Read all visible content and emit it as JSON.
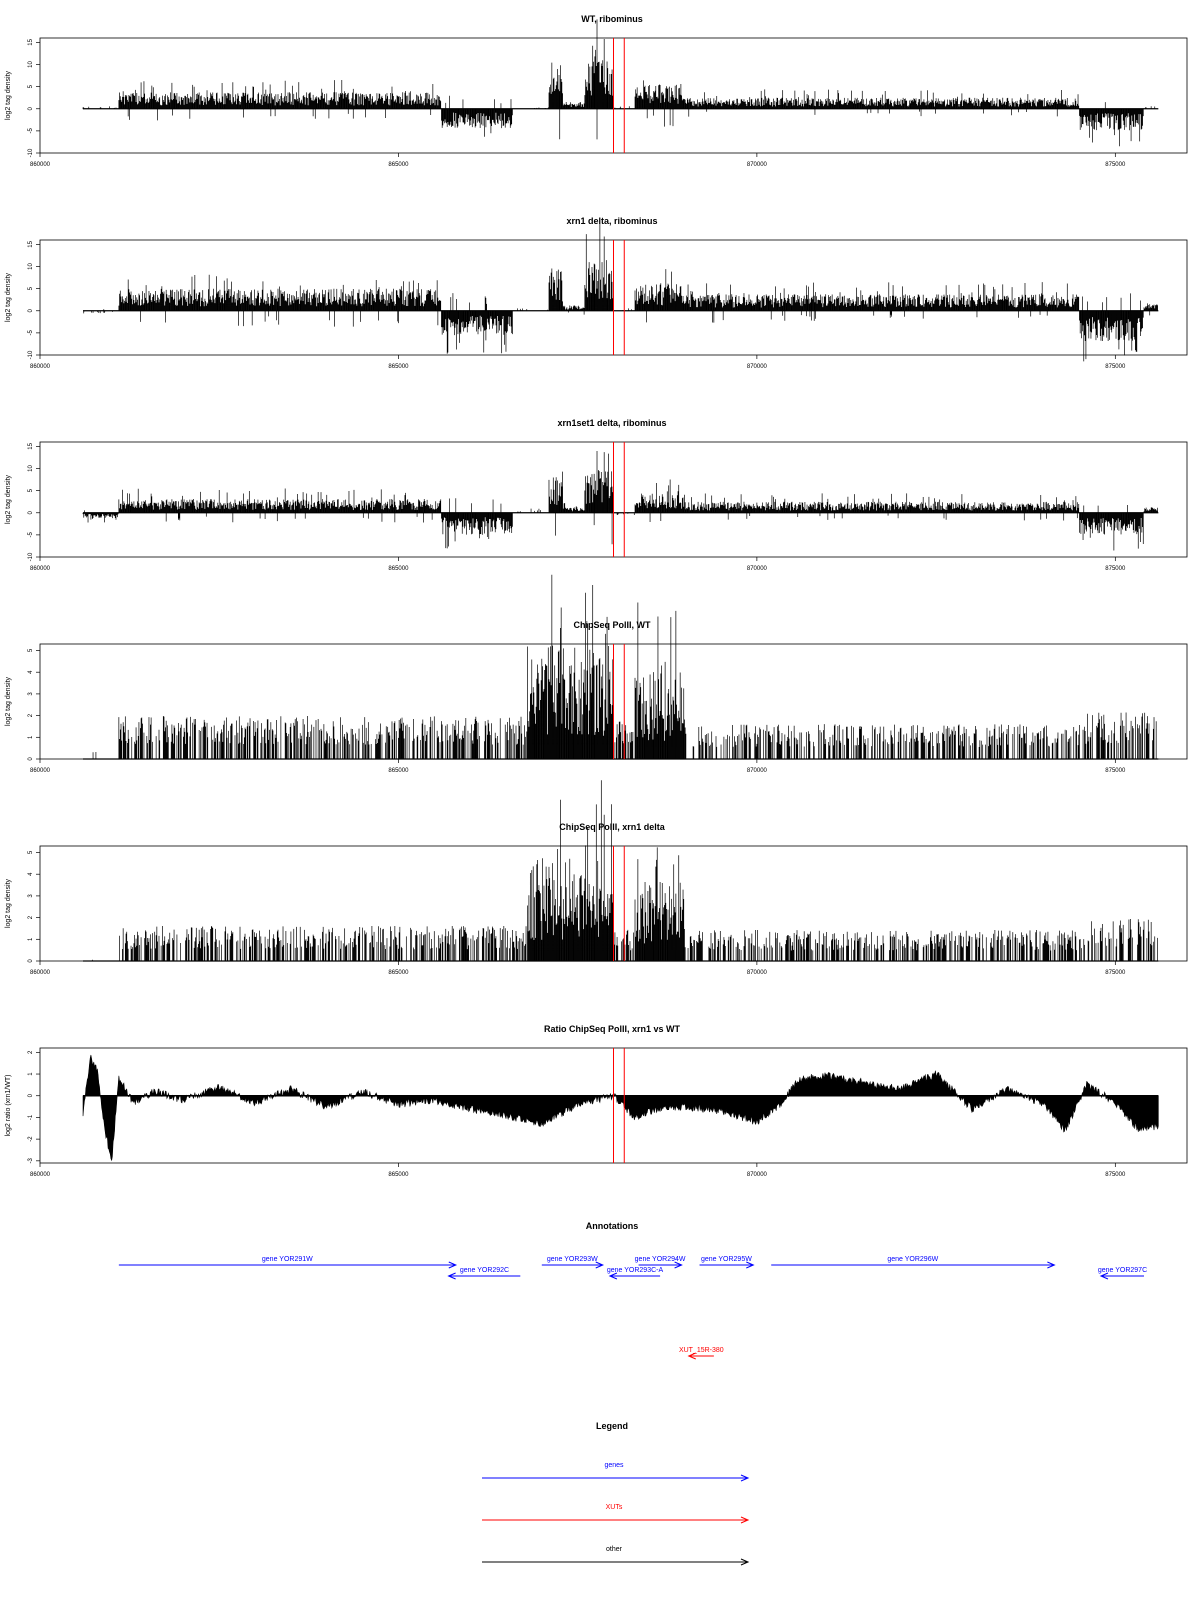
{
  "chart_data": [
    {
      "type": "bar",
      "title": "WT, ribominus",
      "ylabel": "log2 tag density",
      "xlim": [
        860000,
        876000
      ],
      "ylim": [
        -10,
        16
      ],
      "yticks": [
        -10,
        -5,
        0,
        5,
        10,
        15
      ],
      "xticks": [
        860000,
        865000,
        870000,
        875000
      ],
      "xtick_labels": [
        "860000",
        "865000",
        "870000",
        "875000"
      ],
      "markers": [
        868000,
        868150
      ],
      "data_range": [
        860600,
        875600
      ],
      "segments": [
        {
          "x0": 860600,
          "x1": 861100,
          "level": 0.3,
          "sign": 1
        },
        {
          "x0": 861100,
          "x1": 865600,
          "level": 3.0,
          "sign": 1
        },
        {
          "x0": 865600,
          "x1": 866600,
          "level": 3.5,
          "sign": -1
        },
        {
          "x0": 866600,
          "x1": 867100,
          "level": 0.3,
          "sign": 1
        },
        {
          "x0": 867100,
          "x1": 867300,
          "level": 8.0,
          "sign": 1
        },
        {
          "x0": 867300,
          "x1": 867600,
          "level": 1.0,
          "sign": 1
        },
        {
          "x0": 867600,
          "x1": 868000,
          "level": 9.5,
          "sign": 1
        },
        {
          "x0": 868000,
          "x1": 868300,
          "level": 0.5,
          "sign": 1
        },
        {
          "x0": 868300,
          "x1": 869000,
          "level": 4.5,
          "sign": 1
        },
        {
          "x0": 869000,
          "x1": 874500,
          "level": 2.0,
          "sign": 1
        },
        {
          "x0": 874500,
          "x1": 875400,
          "level": 4.0,
          "sign": -1
        },
        {
          "x0": 875400,
          "x1": 875600,
          "level": 0.5,
          "sign": 1
        }
      ]
    },
    {
      "type": "bar",
      "title": "xrn1 delta, ribominus",
      "ylabel": "log2 tag density",
      "xlim": [
        860000,
        876000
      ],
      "ylim": [
        -10,
        16
      ],
      "yticks": [
        -10,
        -5,
        0,
        5,
        10,
        15
      ],
      "xticks": [
        860000,
        865000,
        870000,
        875000
      ],
      "xtick_labels": [
        "860000",
        "865000",
        "870000",
        "875000"
      ],
      "markers": [
        868000,
        868150
      ],
      "data_range": [
        860600,
        875600
      ],
      "segments": [
        {
          "x0": 860600,
          "x1": 861100,
          "level": 0.5,
          "sign": -1
        },
        {
          "x0": 861100,
          "x1": 865600,
          "level": 4.0,
          "sign": 1
        },
        {
          "x0": 865600,
          "x1": 866600,
          "level": 4.5,
          "sign": -1
        },
        {
          "x0": 866600,
          "x1": 867100,
          "level": 0.5,
          "sign": 1
        },
        {
          "x0": 867100,
          "x1": 867300,
          "level": 8.0,
          "sign": 1
        },
        {
          "x0": 867300,
          "x1": 867600,
          "level": 1.0,
          "sign": 1
        },
        {
          "x0": 867600,
          "x1": 868000,
          "level": 9.5,
          "sign": 1
        },
        {
          "x0": 868000,
          "x1": 868300,
          "level": 0.5,
          "sign": 1
        },
        {
          "x0": 868300,
          "x1": 869000,
          "level": 5.0,
          "sign": 1
        },
        {
          "x0": 869000,
          "x1": 874500,
          "level": 3.0,
          "sign": 1
        },
        {
          "x0": 874500,
          "x1": 875400,
          "level": 5.5,
          "sign": -1
        },
        {
          "x0": 875400,
          "x1": 875600,
          "level": 1.5,
          "sign": 1
        }
      ]
    },
    {
      "type": "bar",
      "title": "xrn1set1 delta, ribominus",
      "ylabel": "log2 tag density",
      "xlim": [
        860000,
        876000
      ],
      "ylim": [
        -10,
        16
      ],
      "yticks": [
        -10,
        -5,
        0,
        5,
        10,
        15
      ],
      "xticks": [
        860000,
        865000,
        870000,
        875000
      ],
      "xtick_labels": [
        "860000",
        "865000",
        "870000",
        "875000"
      ],
      "markers": [
        868000,
        868150
      ],
      "data_range": [
        860600,
        875600
      ],
      "segments": [
        {
          "x0": 860600,
          "x1": 861100,
          "level": 1.0,
          "sign": -1
        },
        {
          "x0": 861100,
          "x1": 865600,
          "level": 2.5,
          "sign": 1
        },
        {
          "x0": 865600,
          "x1": 866600,
          "level": 4.0,
          "sign": -1
        },
        {
          "x0": 866600,
          "x1": 867100,
          "level": 0.5,
          "sign": 1
        },
        {
          "x0": 867100,
          "x1": 867300,
          "level": 6.5,
          "sign": 1
        },
        {
          "x0": 867300,
          "x1": 867600,
          "level": 1.0,
          "sign": 1
        },
        {
          "x0": 867600,
          "x1": 868000,
          "level": 8.0,
          "sign": 1
        },
        {
          "x0": 868000,
          "x1": 868300,
          "level": 0.5,
          "sign": -1
        },
        {
          "x0": 868300,
          "x1": 869000,
          "level": 3.5,
          "sign": 1
        },
        {
          "x0": 869000,
          "x1": 874500,
          "level": 2.0,
          "sign": 1
        },
        {
          "x0": 874500,
          "x1": 875400,
          "level": 4.0,
          "sign": -1
        },
        {
          "x0": 875400,
          "x1": 875600,
          "level": 1.0,
          "sign": 1
        }
      ]
    },
    {
      "type": "bar",
      "title": "ChipSeq PolII, WT",
      "ylabel": "log2 tag density",
      "xlim": [
        860000,
        876000
      ],
      "ylim": [
        0,
        5.3
      ],
      "yticks": [
        0,
        1,
        2,
        3,
        4,
        5
      ],
      "xticks": [
        860000,
        865000,
        870000,
        875000
      ],
      "xtick_labels": [
        "860000",
        "865000",
        "870000",
        "875000"
      ],
      "markers": [
        868000,
        868150
      ],
      "data_range": [
        860600,
        875600
      ],
      "segments": [
        {
          "x0": 860600,
          "x1": 861100,
          "level": 0.2,
          "sign": 1
        },
        {
          "x0": 861100,
          "x1": 866800,
          "level": 1.1,
          "sign": 1
        },
        {
          "x0": 866800,
          "x1": 868000,
          "level": 4.2,
          "sign": 1
        },
        {
          "x0": 868000,
          "x1": 868300,
          "level": 1.0,
          "sign": 1
        },
        {
          "x0": 868300,
          "x1": 869000,
          "level": 3.3,
          "sign": 1
        },
        {
          "x0": 869000,
          "x1": 874600,
          "level": 0.9,
          "sign": 1
        },
        {
          "x0": 874600,
          "x1": 875600,
          "level": 1.2,
          "sign": 1
        }
      ]
    },
    {
      "type": "bar",
      "title": "ChipSeq PolII, xrn1 delta",
      "ylabel": "log2 tag density",
      "xlim": [
        860000,
        876000
      ],
      "ylim": [
        0,
        5.3
      ],
      "yticks": [
        0,
        1,
        2,
        3,
        4,
        5
      ],
      "xticks": [
        860000,
        865000,
        870000,
        875000
      ],
      "xtick_labels": [
        "860000",
        "865000",
        "870000",
        "875000"
      ],
      "markers": [
        868000,
        868150
      ],
      "data_range": [
        860600,
        875600
      ],
      "segments": [
        {
          "x0": 860600,
          "x1": 861100,
          "level": 0.1,
          "sign": 1
        },
        {
          "x0": 861100,
          "x1": 866800,
          "level": 0.9,
          "sign": 1
        },
        {
          "x0": 866800,
          "x1": 868000,
          "level": 3.8,
          "sign": 1
        },
        {
          "x0": 868000,
          "x1": 868300,
          "level": 0.8,
          "sign": 1
        },
        {
          "x0": 868300,
          "x1": 869000,
          "level": 3.0,
          "sign": 1
        },
        {
          "x0": 869000,
          "x1": 874600,
          "level": 0.8,
          "sign": 1
        },
        {
          "x0": 874600,
          "x1": 875600,
          "level": 1.1,
          "sign": 1
        }
      ]
    },
    {
      "type": "area",
      "title": "Ratio ChipSeq PolII, xrn1 vs WT",
      "ylabel": "log2 ratio (xrn1/WT)",
      "xlim": [
        860000,
        876000
      ],
      "ylim": [
        -3.1,
        2.2
      ],
      "yticks": [
        -3,
        -2,
        -1,
        0,
        1,
        2
      ],
      "xticks": [
        860000,
        865000,
        870000,
        875000
      ],
      "xtick_labels": [
        "860000",
        "865000",
        "870000",
        "875000"
      ],
      "markers": [
        868000,
        868150
      ],
      "profile_x": [
        860600,
        860700,
        860800,
        860900,
        861000,
        861100,
        861300,
        861600,
        862000,
        862500,
        863000,
        863500,
        864000,
        864500,
        865000,
        865500,
        866000,
        866500,
        867000,
        867500,
        868000,
        868300,
        868600,
        869000,
        869500,
        870000,
        870300,
        870600,
        871000,
        871500,
        872000,
        872500,
        873000,
        873500,
        874000,
        874300,
        874600,
        875000,
        875300,
        875600
      ],
      "profile_y": [
        -0.9,
        1.8,
        1.2,
        -1.5,
        -3.0,
        0.8,
        -0.3,
        0.2,
        -0.2,
        0.4,
        -0.3,
        0.3,
        -0.5,
        0.2,
        -0.4,
        -0.2,
        -0.6,
        -0.9,
        -1.3,
        -0.4,
        0.0,
        -1.0,
        -0.6,
        -0.5,
        -0.7,
        -1.2,
        -0.5,
        0.8,
        0.9,
        0.6,
        0.3,
        1.0,
        -0.6,
        0.3,
        -0.4,
        -1.6,
        0.5,
        -0.3,
        -1.5,
        -1.4
      ]
    }
  ],
  "annotations": {
    "title": "Annotations",
    "xlim": [
      860000,
      876000
    ],
    "features": [
      {
        "label": "gene YOR291W",
        "start": 861100,
        "end": 865800,
        "strand": "+",
        "row": 0,
        "kind": "gene",
        "color": "#0000ff"
      },
      {
        "label": "gene YOR292C",
        "start": 865700,
        "end": 866700,
        "strand": "-",
        "row": 1,
        "kind": "gene",
        "color": "#0000ff"
      },
      {
        "label": "gene YOR293W",
        "start": 867000,
        "end": 867850,
        "strand": "+",
        "row": 0,
        "kind": "gene",
        "color": "#0000ff"
      },
      {
        "label": "gene YOR293C-A",
        "start": 867950,
        "end": 868650,
        "strand": "-",
        "row": 1,
        "kind": "gene",
        "color": "#0000ff"
      },
      {
        "label": "gene YOR294W",
        "start": 868350,
        "end": 868950,
        "strand": "+",
        "row": 0,
        "kind": "gene",
        "color": "#0000ff"
      },
      {
        "label": "gene YOR295W",
        "start": 869200,
        "end": 869950,
        "strand": "+",
        "row": 0,
        "kind": "gene",
        "color": "#0000ff"
      },
      {
        "label": "gene YOR296W",
        "start": 870200,
        "end": 874150,
        "strand": "+",
        "row": 0,
        "kind": "gene",
        "color": "#0000ff"
      },
      {
        "label": "gene YOR297C",
        "start": 874800,
        "end": 875400,
        "strand": "-",
        "row": 1,
        "kind": "gene",
        "color": "#0000ff"
      },
      {
        "label": "XUT_15R-380",
        "start": 869050,
        "end": 869400,
        "strand": "-",
        "row": 2,
        "kind": "xut",
        "color": "#ff0000"
      }
    ]
  },
  "legend": {
    "title": "Legend",
    "entries": [
      {
        "label": "genes",
        "color": "#0000ff"
      },
      {
        "label": "XUTs",
        "color": "#ff0000"
      },
      {
        "label": "other",
        "color": "#000000"
      }
    ]
  }
}
